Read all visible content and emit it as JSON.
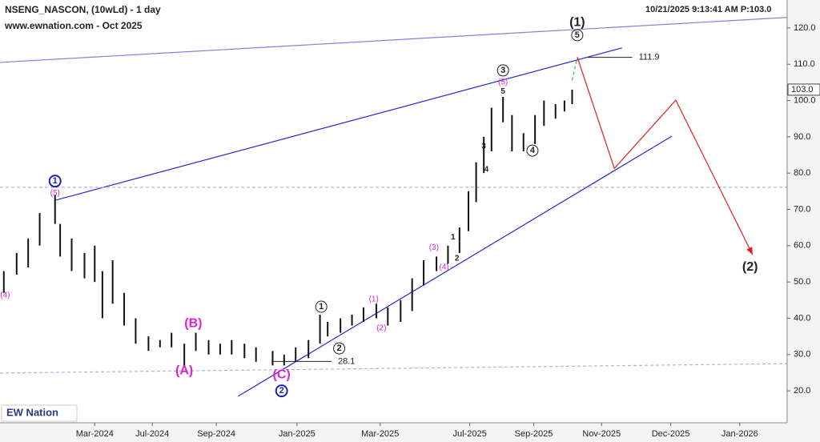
{
  "chart_data": {
    "type": "range-bar",
    "title": "NSENG_NASCON, (10wLd) - 1 day",
    "subtitle": "www.ewnation.com  - Oct 2025",
    "timestamp": "10/21/2025 9:13:41 AM  P:103.0",
    "logo": "EW Nation",
    "color": "#111111",
    "xlim": [
      0,
      615
    ],
    "ylim": [
      11.2,
      127.7
    ],
    "xticks": [
      {
        "value": 74,
        "label": "Mar-2024"
      },
      {
        "value": 119,
        "label": "Jul-2024"
      },
      {
        "value": 169,
        "label": "Sep-2024"
      },
      {
        "value": 232,
        "label": "Jan-2025"
      },
      {
        "value": 297,
        "label": "Mar-2025"
      },
      {
        "value": 367,
        "label": "Jul-2025"
      },
      {
        "value": 417,
        "label": "Sep-2025"
      },
      {
        "value": 470,
        "label": "Nov-2025"
      },
      {
        "value": 524,
        "label": "Dec-2025"
      },
      {
        "value": 578,
        "label": "Jan-2026"
      }
    ],
    "yticks": [
      {
        "value": 20,
        "label": "20.0"
      },
      {
        "value": 30,
        "label": "30.0"
      },
      {
        "value": 40,
        "label": "40.0"
      },
      {
        "value": 50,
        "label": "50.0"
      },
      {
        "value": 60,
        "label": "60.0"
      },
      {
        "value": 70,
        "label": "70.0"
      },
      {
        "value": 80,
        "label": "80.0"
      },
      {
        "value": 90,
        "label": "90.0"
      },
      {
        "value": 100,
        "label": "100.0"
      },
      {
        "value": 110,
        "label": "110.0"
      },
      {
        "value": 120,
        "label": "120.0"
      }
    ],
    "last_price": {
      "value": 103,
      "label": "103.0"
    },
    "x": [
      3,
      13,
      22,
      31,
      43,
      47,
      56,
      66,
      74,
      80,
      88,
      97,
      106,
      116,
      125,
      134,
      144,
      153,
      163,
      172,
      181,
      191,
      200,
      213,
      222,
      231,
      241,
      250,
      256,
      266,
      275,
      284,
      294,
      303,
      313,
      322,
      331,
      341,
      350,
      359,
      366,
      372,
      378,
      384,
      393,
      400,
      409,
      418,
      425,
      434,
      441,
      447
    ],
    "low": [
      47,
      52,
      54,
      60,
      66,
      57,
      53,
      51,
      50,
      40,
      44,
      38,
      33,
      31,
      32,
      32,
      27,
      31,
      30,
      30,
      30,
      29,
      28,
      27,
      27,
      28,
      29,
      33,
      35,
      36,
      38,
      39,
      40,
      38,
      39,
      42,
      49,
      53,
      55,
      58,
      64,
      72,
      80,
      86,
      94,
      86,
      86,
      88,
      93,
      95,
      97,
      99
    ],
    "high": [
      53,
      58,
      62,
      69,
      74,
      66,
      62,
      58,
      60,
      53,
      56,
      47,
      40,
      35,
      34,
      36,
      33,
      36,
      34,
      33,
      34,
      33,
      32,
      31,
      30,
      32,
      34,
      41,
      39,
      40,
      41,
      43,
      44,
      43,
      45,
      51,
      56,
      57,
      60,
      65,
      75,
      83,
      90,
      98,
      101,
      96,
      91,
      96,
      100,
      99,
      100,
      103
    ],
    "lines": [
      {
        "x": [
          0,
          615
        ],
        "y": [
          110.5,
          122.9
        ],
        "color": "#8080e0",
        "dashed": false
      },
      {
        "x": [
          43,
          486
        ],
        "y": [
          72.5,
          114.5
        ],
        "color": "#2828d0",
        "dashed": false
      },
      {
        "x": [
          186,
          525
        ],
        "y": [
          18.5,
          90.2
        ],
        "color": "#2828d0",
        "dashed": false
      },
      {
        "x": [
          0,
          615
        ],
        "y": [
          76.1,
          76.1
        ],
        "color": "#b0b0e8",
        "dashed": true
      },
      {
        "x": [
          0,
          615
        ],
        "y": [
          24.9,
          27.5
        ],
        "color": "#b0b0e8",
        "dashed": true
      },
      {
        "x": [
          447,
          451
        ],
        "y": [
          105.6,
          111.8
        ],
        "color": "#30c030",
        "dashed": true
      },
      {
        "x": [
          451,
          480,
          528,
          588
        ],
        "y": [
          112,
          81.3,
          100.1,
          57.5
        ],
        "color": "#e02020",
        "dashed": false
      }
    ],
    "levels": [
      {
        "value": 111.9,
        "label": "111.9",
        "x": [
          459,
          494
        ]
      },
      {
        "value": 28.1,
        "label": "28.1",
        "x": [
          212,
          259
        ]
      }
    ],
    "annotations": [
      {
        "text": "(1)",
        "x": 451,
        "y": 121.5,
        "color": "#222222",
        "circled": false,
        "large": true
      },
      {
        "text": "5",
        "x": 451,
        "y": 118,
        "color": "#222222",
        "circled": true,
        "large": false
      },
      {
        "text": "3",
        "x": 393,
        "y": 108.3,
        "color": "#222222",
        "circled": true,
        "large": false
      },
      {
        "text": "(5)",
        "x": 393,
        "y": 105,
        "color": "#e020d0",
        "circled": false,
        "large": false
      },
      {
        "text": "5",
        "x": 393,
        "y": 102.5,
        "color": "#222222",
        "circled": false,
        "large": false
      },
      {
        "text": "3",
        "x": 378,
        "y": 87.4,
        "color": "#222222",
        "circled": false,
        "large": false
      },
      {
        "text": "4",
        "x": 380,
        "y": 81,
        "color": "#222222",
        "circled": false,
        "large": false
      },
      {
        "text": "4",
        "x": 416,
        "y": 86.2,
        "color": "#222222",
        "circled": true,
        "large": false
      },
      {
        "text": "1",
        "x": 43,
        "y": 77.8,
        "color": "#2020c0",
        "circled": true,
        "large": false
      },
      {
        "text": "(5)",
        "x": 43,
        "y": 74.5,
        "color": "#e020d0",
        "circled": false,
        "large": false
      },
      {
        "text": "(4)",
        "x": 4,
        "y": 46.3,
        "color": "#e020d0",
        "circled": false,
        "large": false
      },
      {
        "text": "(B)",
        "x": 151,
        "y": 38.5,
        "color": "#e020d0",
        "circled": false,
        "large": true
      },
      {
        "text": "(A)",
        "x": 144,
        "y": 25.5,
        "color": "#e020d0",
        "circled": false,
        "large": true
      },
      {
        "text": "(C)",
        "x": 220,
        "y": 24.4,
        "color": "#e020d0",
        "circled": false,
        "large": true
      },
      {
        "text": "2",
        "x": 220,
        "y": 20,
        "color": "#2020c0",
        "circled": true,
        "large": false
      },
      {
        "text": "1",
        "x": 251,
        "y": 43.2,
        "color": "#222222",
        "circled": true,
        "large": false
      },
      {
        "text": "2",
        "x": 265,
        "y": 31.7,
        "color": "#222222",
        "circled": true,
        "large": false
      },
      {
        "text": "(1)",
        "x": 292,
        "y": 45.2,
        "color": "#e020d0",
        "circled": false,
        "large": false
      },
      {
        "text": "(2)",
        "x": 298,
        "y": 37.3,
        "color": "#e020d0",
        "circled": false,
        "large": false
      },
      {
        "text": "(3)",
        "x": 339,
        "y": 59.4,
        "color": "#e020d0",
        "circled": false,
        "large": false
      },
      {
        "text": "1",
        "x": 354,
        "y": 62.3,
        "color": "#222222",
        "circled": false,
        "large": false
      },
      {
        "text": "2",
        "x": 357,
        "y": 56.5,
        "color": "#222222",
        "circled": false,
        "large": false
      },
      {
        "text": "(4)",
        "x": 347,
        "y": 54,
        "color": "#e020d0",
        "circled": false,
        "large": false
      },
      {
        "text": "(2)",
        "x": 586,
        "y": 54.1,
        "color": "#222222",
        "circled": false,
        "large": true
      }
    ]
  }
}
